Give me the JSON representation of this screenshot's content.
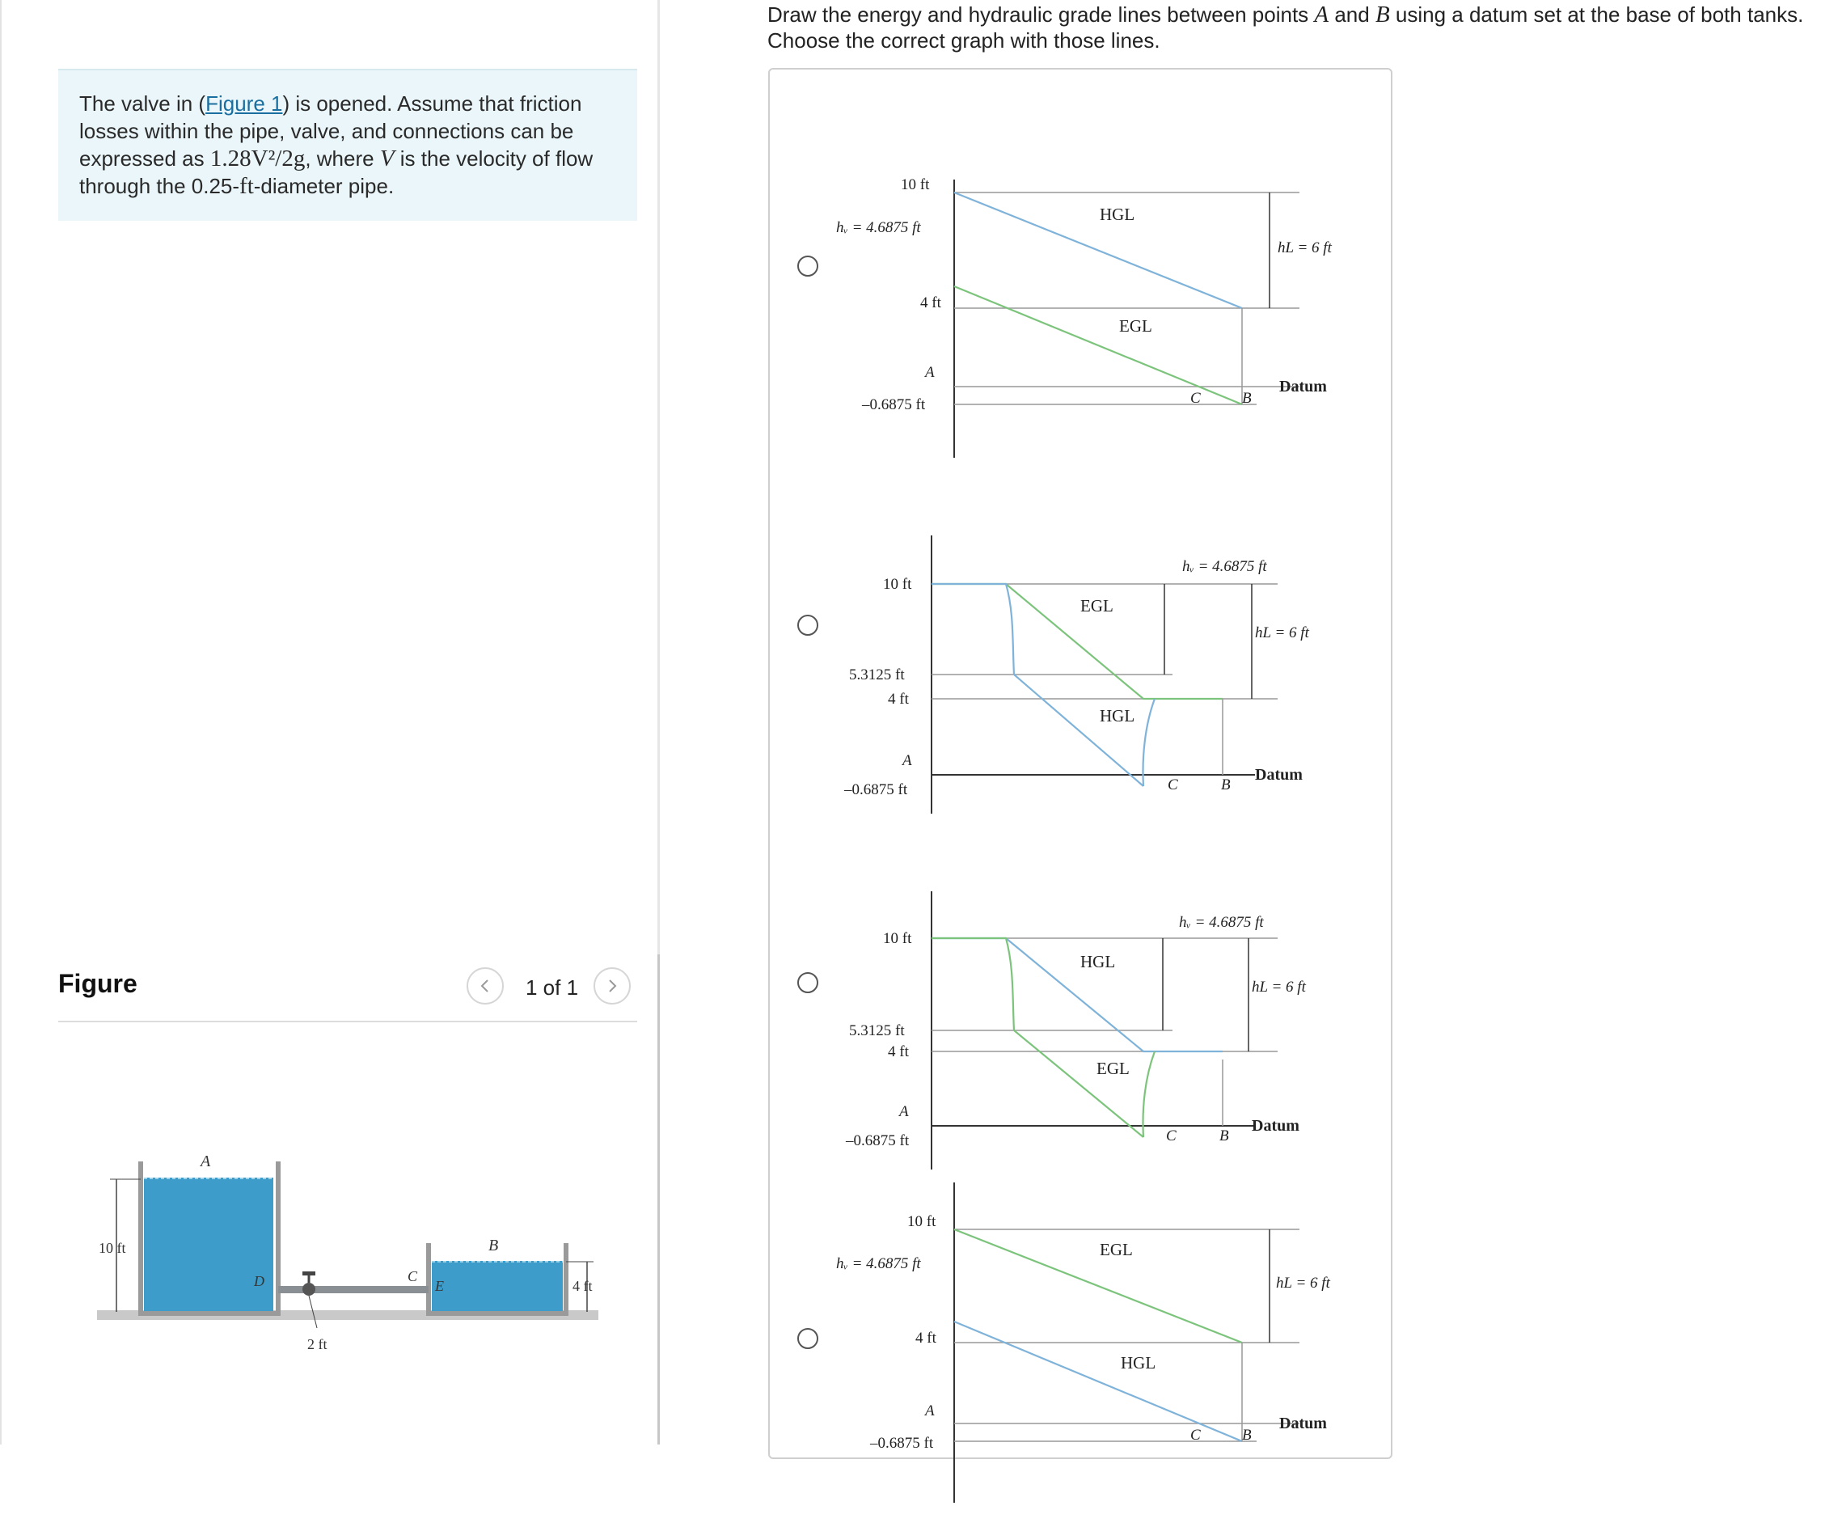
{
  "problem": {
    "text_1": "The valve in (",
    "link": "Figure 1",
    "text_2": ") is opened.  Assume that friction losses within the pipe, valve, and connections can be expressed as ",
    "loss_expr": "1.28V²/2g",
    "text_3": ", where ",
    "var_v": "V",
    "text_4": " is the velocity of flow through the 0.25-",
    "unit_ft": "ft",
    "text_5": "-diameter pipe."
  },
  "figure_panel": {
    "title": "Figure",
    "counter": "1 of 1",
    "prev_icon": "chevron-left-icon",
    "next_icon": "chevron-right-icon",
    "labels": {
      "tank_a": "A",
      "tank_b": "B",
      "point_d": "D",
      "point_c": "C",
      "point_e": "E",
      "height_a": "10 ft",
      "height_b": "4 ft",
      "pipe_len": "2 ft"
    }
  },
  "question": {
    "part_1": "Draw the energy and hydraulic grade lines between points ",
    "var_a": "A",
    "part_2": " and ",
    "var_b": "B",
    "part_3": " using a datum set at the base of both tanks.",
    "line_2": "Choose the correct graph with those lines."
  },
  "options": [
    {
      "top_label": "10 ft",
      "hv": "hᵥ = 4.6875 ft",
      "mid_label": "4 ft",
      "point_a": "A",
      "bottom_label": "–0.6875 ft",
      "line_upper": "HGL",
      "line_lower": "EGL",
      "hl": "hL = 6 ft",
      "point_c": "C",
      "point_b": "B",
      "datum": "Datum"
    },
    {
      "top_label": "10 ft",
      "hv": "hᵥ = 4.6875 ft",
      "mid_label_1": "5.3125 ft",
      "mid_label": "4 ft",
      "point_a": "A",
      "bottom_label": "–0.6875 ft",
      "line_upper": "EGL",
      "line_lower": "HGL",
      "hl": "hL = 6 ft",
      "point_c": "C",
      "point_b": "B",
      "datum": "Datum"
    },
    {
      "top_label": "10 ft",
      "hv": "hᵥ = 4.6875 ft",
      "mid_label_1": "5.3125 ft",
      "mid_label": "4 ft",
      "point_a": "A",
      "bottom_label": "–0.6875 ft",
      "line_upper": "HGL",
      "line_lower": "EGL",
      "hl": "hL = 6 ft",
      "point_c": "C",
      "point_b": "B",
      "datum": "Datum"
    },
    {
      "top_label": "10 ft",
      "hv": "hᵥ = 4.6875 ft",
      "mid_label": "4 ft",
      "point_a": "A",
      "bottom_label": "–0.6875 ft",
      "line_upper": "EGL",
      "line_lower": "HGL",
      "hl": "hL = 6 ft",
      "point_c": "C",
      "point_b": "B",
      "datum": "Datum"
    }
  ],
  "colors": {
    "hgl_blue": "#7fb3d9",
    "egl_green": "#7cc47c",
    "water": "#3d9cc9",
    "link": "#1a6fa0"
  }
}
